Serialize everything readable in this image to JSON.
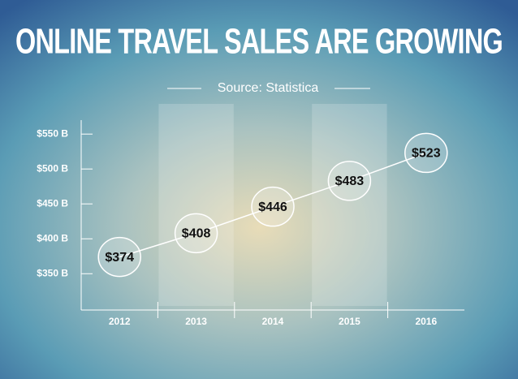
{
  "chart_data": {
    "type": "line",
    "title": "ONLINE TRAVEL SALES ARE GROWING",
    "subtitle": "Source: Statistica",
    "categories": [
      "2012",
      "2013",
      "2014",
      "2015",
      "2016"
    ],
    "values": [
      374,
      408,
      446,
      483,
      523
    ],
    "value_labels": [
      "$374",
      "$408",
      "$446",
      "$483",
      "$523"
    ],
    "color": "#ffffff",
    "ylim": [
      298,
      570
    ],
    "yticks": [
      {
        "value": 350,
        "label": "$350 B"
      },
      {
        "value": 400,
        "label": "$400 B"
      },
      {
        "value": 450,
        "label": "$450 B"
      },
      {
        "value": 500,
        "label": "$500 B"
      },
      {
        "value": 550,
        "label": "$550 B"
      }
    ]
  }
}
